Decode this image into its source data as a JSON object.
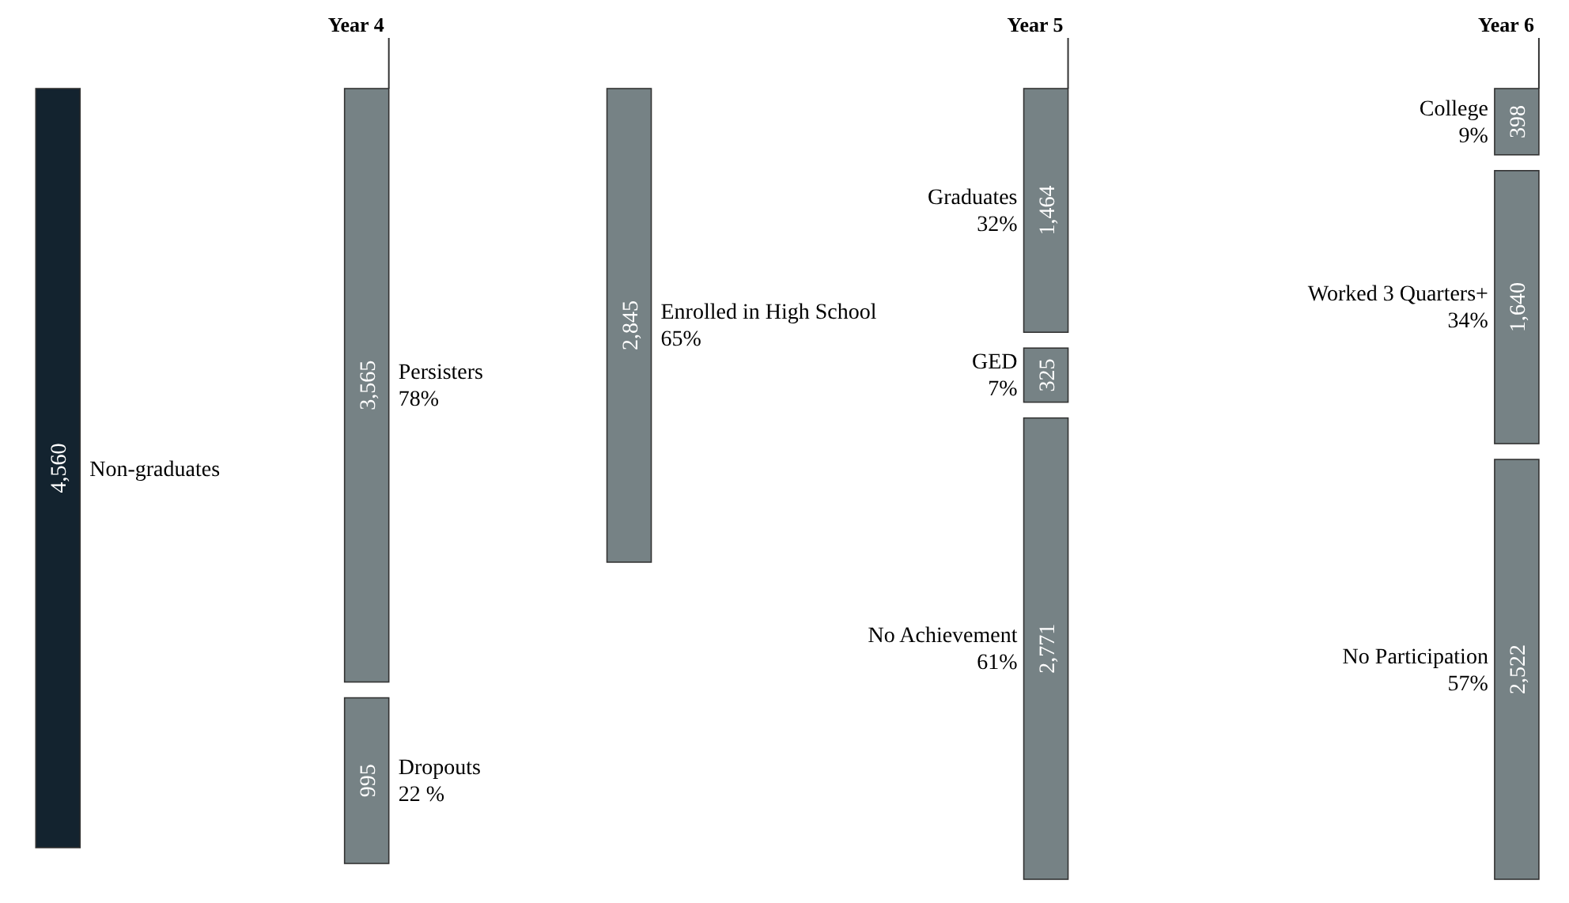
{
  "chart_data": {
    "type": "other",
    "categories": [
      "Non-graduates",
      "Persisters",
      "Dropouts",
      "Enrolled in High School",
      "Graduates",
      "GED",
      "No Achievement",
      "College",
      "Worked 3 Quarters+",
      "No Participation"
    ],
    "values": [
      4560,
      3565,
      995,
      2845,
      1464,
      325,
      2771,
      398,
      1640,
      2522
    ],
    "value_labels": [
      "4,560",
      "3,565",
      "995",
      "2,845",
      "1,464",
      "325",
      "2,771",
      "398",
      "1,640",
      "2,522"
    ],
    "colors": [
      "#13232f",
      "#768285",
      "#768285",
      "#768285",
      "#768285",
      "#768285",
      "#768285",
      "#768285",
      "#768285",
      "#768285"
    ],
    "annotations": [
      "78%",
      "22 %",
      "65%",
      "32%",
      "7%",
      "61%",
      "9%",
      "34%",
      "57%",
      {
        "text": "Year 4",
        "x": "Persisters"
      },
      {
        "text": "Year 5",
        "x": "Graduates"
      },
      {
        "text": "Year 6",
        "x": "College"
      }
    ]
  }
}
